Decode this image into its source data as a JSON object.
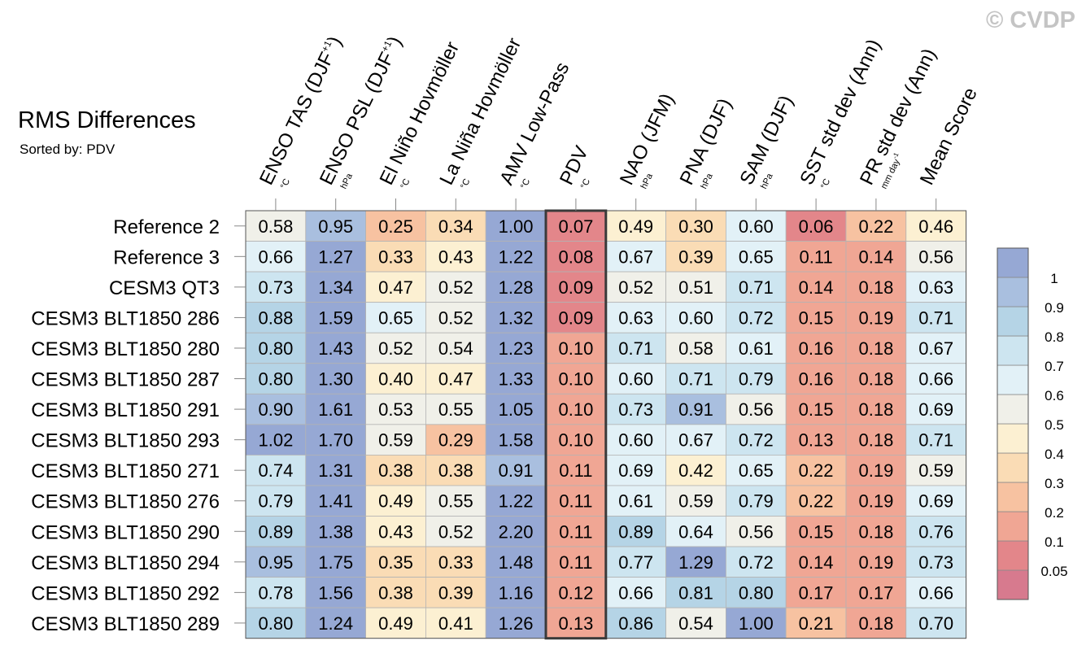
{
  "watermark": "© CVDP",
  "title": "RMS Differences",
  "subtitle": "Sorted by: PDV",
  "chart_data": {
    "type": "heatmap",
    "columns": [
      {
        "label": "ENSO TAS (DJF",
        "sup": "+1",
        "close": ")",
        "unit": "°C"
      },
      {
        "label": "ENSO PSL (DJF",
        "sup": "+1",
        "close": ")",
        "unit": "hPa"
      },
      {
        "label": "El Niño Hovmöller",
        "sup": "",
        "close": "",
        "unit": "°C"
      },
      {
        "label": "La Niña Hovmöller",
        "sup": "",
        "close": "",
        "unit": "°C"
      },
      {
        "label": "AMV Low-Pass",
        "sup": "",
        "close": "",
        "unit": "°C"
      },
      {
        "label": "PDV",
        "sup": "",
        "close": "",
        "unit": "°C"
      },
      {
        "label": "NAO (JFM)",
        "sup": "",
        "close": "",
        "unit": "hPa"
      },
      {
        "label": "PNA (DJF)",
        "sup": "",
        "close": "",
        "unit": "hPa"
      },
      {
        "label": "SAM (DJF)",
        "sup": "",
        "close": "",
        "unit": "hPa"
      },
      {
        "label": "SST std dev (Ann)",
        "sup": "",
        "close": "",
        "unit": "°C"
      },
      {
        "label": "PR std dev (Ann)",
        "sup": "",
        "close": "",
        "unit": "mm day-1"
      },
      {
        "label": "Mean Score",
        "sup": "",
        "close": "",
        "unit": ""
      }
    ],
    "rows": [
      "Reference 2",
      "Reference 3",
      "CESM3 QT3",
      "CESM3 BLT1850 286",
      "CESM3 BLT1850 280",
      "CESM3 BLT1850 287",
      "CESM3 BLT1850 291",
      "CESM3 BLT1850 293",
      "CESM3 BLT1850 271",
      "CESM3 BLT1850 276",
      "CESM3 BLT1850 290",
      "CESM3 BLT1850 294",
      "CESM3 BLT1850 292",
      "CESM3 BLT1850 289"
    ],
    "values": [
      [
        "0.58",
        "0.95",
        "0.25",
        "0.34",
        "1.00",
        "0.07",
        "0.49",
        "0.30",
        "0.60",
        "0.06",
        "0.22",
        "0.46"
      ],
      [
        "0.66",
        "1.27",
        "0.33",
        "0.43",
        "1.22",
        "0.08",
        "0.67",
        "0.39",
        "0.65",
        "0.11",
        "0.14",
        "0.56"
      ],
      [
        "0.73",
        "1.34",
        "0.47",
        "0.52",
        "1.28",
        "0.09",
        "0.52",
        "0.51",
        "0.71",
        "0.14",
        "0.18",
        "0.63"
      ],
      [
        "0.88",
        "1.59",
        "0.65",
        "0.52",
        "1.32",
        "0.09",
        "0.63",
        "0.60",
        "0.72",
        "0.15",
        "0.19",
        "0.71"
      ],
      [
        "0.80",
        "1.43",
        "0.52",
        "0.54",
        "1.23",
        "0.10",
        "0.71",
        "0.58",
        "0.61",
        "0.16",
        "0.18",
        "0.67"
      ],
      [
        "0.80",
        "1.30",
        "0.40",
        "0.47",
        "1.33",
        "0.10",
        "0.60",
        "0.71",
        "0.79",
        "0.16",
        "0.18",
        "0.66"
      ],
      [
        "0.90",
        "1.61",
        "0.53",
        "0.55",
        "1.05",
        "0.10",
        "0.73",
        "0.91",
        "0.56",
        "0.15",
        "0.18",
        "0.69"
      ],
      [
        "1.02",
        "1.70",
        "0.59",
        "0.29",
        "1.58",
        "0.10",
        "0.60",
        "0.67",
        "0.72",
        "0.13",
        "0.18",
        "0.71"
      ],
      [
        "0.74",
        "1.31",
        "0.38",
        "0.38",
        "0.91",
        "0.11",
        "0.69",
        "0.42",
        "0.65",
        "0.22",
        "0.19",
        "0.59"
      ],
      [
        "0.79",
        "1.41",
        "0.49",
        "0.55",
        "1.22",
        "0.11",
        "0.61",
        "0.59",
        "0.79",
        "0.22",
        "0.19",
        "0.69"
      ],
      [
        "0.89",
        "1.38",
        "0.43",
        "0.52",
        "2.20",
        "0.11",
        "0.89",
        "0.64",
        "0.56",
        "0.15",
        "0.18",
        "0.76"
      ],
      [
        "0.95",
        "1.75",
        "0.35",
        "0.33",
        "1.48",
        "0.11",
        "0.77",
        "1.29",
        "0.72",
        "0.14",
        "0.19",
        "0.73"
      ],
      [
        "0.78",
        "1.56",
        "0.38",
        "0.39",
        "1.16",
        "0.12",
        "0.66",
        "0.81",
        "0.80",
        "0.17",
        "0.17",
        "0.66"
      ],
      [
        "0.80",
        "1.24",
        "0.49",
        "0.41",
        "1.26",
        "0.13",
        "0.86",
        "0.54",
        "1.00",
        "0.21",
        "0.18",
        "0.70"
      ]
    ],
    "highlighted_column": "PDV",
    "colorbar": {
      "levels": [
        "0.05",
        "0.1",
        "0.2",
        "0.3",
        "0.4",
        "0.5",
        "0.6",
        "0.7",
        "0.8",
        "0.9",
        "1"
      ],
      "colors": [
        "#d77a8e",
        "#e3868a",
        "#f0a694",
        "#f7c2a1",
        "#fadcb5",
        "#fcf0d2",
        "#f0f0e9",
        "#e2f1f7",
        "#cde5f0",
        "#b5d4e6",
        "#a9bfdf",
        "#96a8d4"
      ]
    }
  }
}
